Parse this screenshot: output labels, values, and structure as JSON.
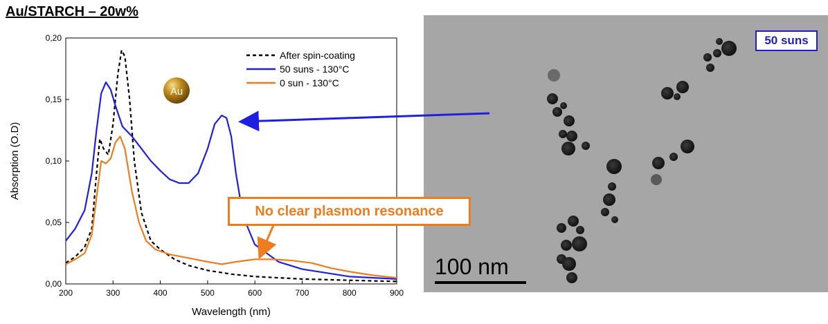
{
  "title": "Au/STARCH – 20w%",
  "tem": {
    "badge": "50 suns",
    "scale_label": "100 nm"
  },
  "annotation": "No clear plasmon resonance",
  "au_label": "Au",
  "chart_data": {
    "type": "line",
    "xlabel": "Wavelength (nm)",
    "ylabel": "Absorption (O.D)",
    "xlim": [
      200,
      900
    ],
    "ylim": [
      0,
      0.2
    ],
    "xticks": [
      200,
      300,
      400,
      500,
      600,
      700,
      800,
      900
    ],
    "xtick_labels": [
      "200",
      "300",
      "400",
      "500",
      "600",
      "700",
      "800",
      "900"
    ],
    "yticks": [
      0,
      0.05,
      0.1,
      0.15,
      0.2
    ],
    "ytick_labels": [
      "0,00",
      "0,05",
      "0,10",
      "0,15",
      "0,20"
    ],
    "grid": false,
    "legend_position": "top-right",
    "series": [
      {
        "name": "After spin-coating",
        "color": "#000000",
        "style": "dashed",
        "x": [
          200,
          220,
          240,
          255,
          265,
          272,
          280,
          290,
          300,
          310,
          318,
          325,
          335,
          345,
          360,
          380,
          400,
          430,
          460,
          500,
          550,
          600,
          700,
          800,
          900
        ],
        "y": [
          0.017,
          0.022,
          0.03,
          0.045,
          0.09,
          0.118,
          0.11,
          0.105,
          0.13,
          0.17,
          0.19,
          0.185,
          0.15,
          0.1,
          0.058,
          0.035,
          0.028,
          0.02,
          0.015,
          0.011,
          0.008,
          0.006,
          0.004,
          0.003,
          0.002
        ]
      },
      {
        "name": "50 suns - 130°C",
        "color": "#1f1fe0",
        "style": "solid",
        "x": [
          200,
          220,
          240,
          255,
          265,
          275,
          285,
          295,
          305,
          320,
          340,
          360,
          380,
          400,
          420,
          440,
          460,
          480,
          500,
          515,
          530,
          540,
          550,
          560,
          575,
          600,
          650,
          700,
          800,
          900
        ],
        "y": [
          0.035,
          0.045,
          0.06,
          0.09,
          0.125,
          0.155,
          0.164,
          0.158,
          0.145,
          0.128,
          0.12,
          0.11,
          0.1,
          0.092,
          0.085,
          0.082,
          0.082,
          0.09,
          0.11,
          0.13,
          0.137,
          0.135,
          0.12,
          0.09,
          0.055,
          0.032,
          0.018,
          0.012,
          0.006,
          0.004
        ]
      },
      {
        "name": "0 sun - 130°C",
        "color": "#ed7d1f",
        "style": "solid",
        "x": [
          200,
          220,
          240,
          255,
          265,
          275,
          285,
          295,
          305,
          315,
          325,
          340,
          355,
          370,
          390,
          420,
          460,
          500,
          530,
          560,
          600,
          640,
          680,
          720,
          760,
          800,
          850,
          900
        ],
        "y": [
          0.016,
          0.02,
          0.025,
          0.04,
          0.07,
          0.1,
          0.098,
          0.102,
          0.115,
          0.12,
          0.11,
          0.075,
          0.05,
          0.035,
          0.028,
          0.024,
          0.021,
          0.018,
          0.016,
          0.018,
          0.02,
          0.02,
          0.019,
          0.017,
          0.013,
          0.01,
          0.007,
          0.005
        ]
      }
    ]
  }
}
